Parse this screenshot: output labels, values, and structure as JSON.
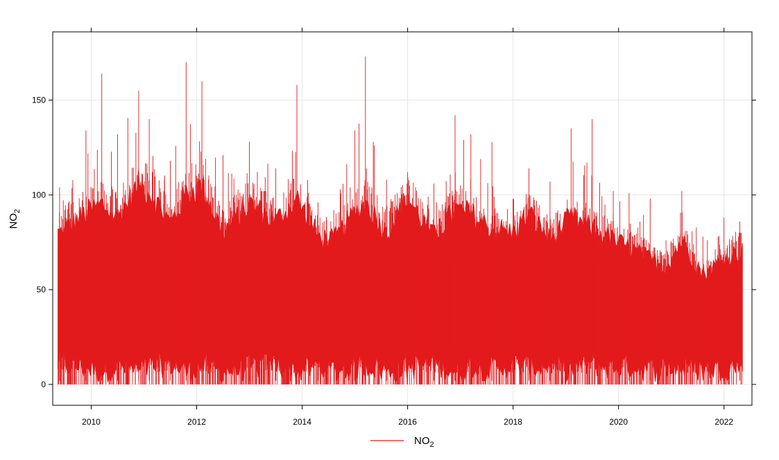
{
  "chart_data": {
    "type": "line",
    "ylabel": "NO2",
    "ylim": [
      -11,
      186
    ],
    "xlim": [
      2009.27,
      2022.53
    ],
    "x_domain": [
      2009.37,
      2022.35
    ],
    "y_ticks": [
      0,
      50,
      100,
      150
    ],
    "x_ticks": [
      2010,
      2012,
      2014,
      2016,
      2018,
      2020,
      2022
    ],
    "grid": true,
    "legend_position": "bottom",
    "series": [
      {
        "name": "NO2",
        "color": "#e31a1c",
        "description_points": {
          "x": [
            2009.4,
            2009.9,
            2010.2,
            2010.5,
            2010.9,
            2011.1,
            2011.5,
            2011.8,
            2012.1,
            2012.5,
            2013.0,
            2013.5,
            2013.9,
            2014.3,
            2014.6,
            2015.0,
            2015.2,
            2015.6,
            2016.0,
            2016.5,
            2016.9,
            2017.2,
            2017.6,
            2018.0,
            2018.3,
            2018.7,
            2019.1,
            2019.5,
            2019.9,
            2020.2,
            2020.6,
            2020.9,
            2021.2,
            2021.6,
            2022.0,
            2022.3
          ],
          "y_max": [
            104,
            134,
            164,
            132,
            155,
            140,
            118,
            170,
            160,
            121,
            128,
            114,
            158,
            96,
            92,
            134,
            173,
            108,
            112,
            106,
            142,
            132,
            128,
            98,
            114,
            107,
            135,
            140,
            102,
            101,
            98,
            76,
            102,
            78,
            88,
            86
          ],
          "y_upper": [
            80,
            90,
            95,
            88,
            105,
            102,
            85,
            100,
            105,
            80,
            95,
            86,
            98,
            78,
            76,
            90,
            96,
            80,
            98,
            78,
            92,
            90,
            82,
            80,
            90,
            76,
            88,
            82,
            76,
            72,
            66,
            62,
            76,
            58,
            66,
            70
          ],
          "y_lower": [
            4,
            2,
            0,
            3,
            0,
            2,
            4,
            0,
            3,
            0,
            2,
            4,
            0,
            3,
            0,
            2,
            4,
            0,
            2,
            4,
            0,
            3,
            1,
            4,
            2,
            3,
            1,
            4,
            2,
            3,
            1,
            2,
            3,
            1,
            2,
            3
          ]
        }
      }
    ]
  }
}
